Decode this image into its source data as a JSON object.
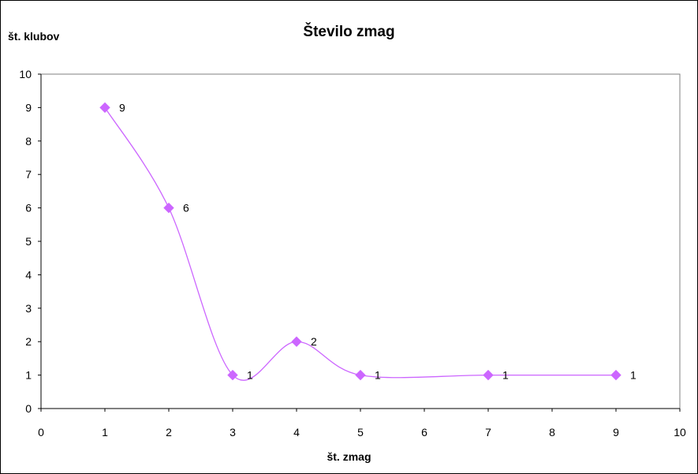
{
  "chart_data": {
    "type": "line",
    "title": "Število zmag",
    "ylabel": "št. klubov",
    "xlabel": "št. zmag",
    "xlim": [
      0,
      10
    ],
    "ylim": [
      0,
      10
    ],
    "xticks": [
      0,
      1,
      2,
      3,
      4,
      5,
      6,
      7,
      8,
      9,
      10
    ],
    "yticks": [
      0,
      1,
      2,
      3,
      4,
      5,
      6,
      7,
      8,
      9,
      10
    ],
    "grid": false,
    "smoothed": true,
    "legend": "none",
    "series": [
      {
        "color": "#cc66ff",
        "marker": "diamond",
        "points": [
          {
            "x": 1,
            "y": 9
          },
          {
            "x": 2,
            "y": 6
          },
          {
            "x": 3,
            "y": 1
          },
          {
            "x": 4,
            "y": 2
          },
          {
            "x": 5,
            "y": 1
          },
          {
            "x": 7,
            "y": 1
          },
          {
            "x": 9,
            "y": 1
          }
        ],
        "data_labels": [
          "9",
          "6",
          "1",
          "2",
          "1",
          "1",
          "1"
        ]
      }
    ]
  }
}
